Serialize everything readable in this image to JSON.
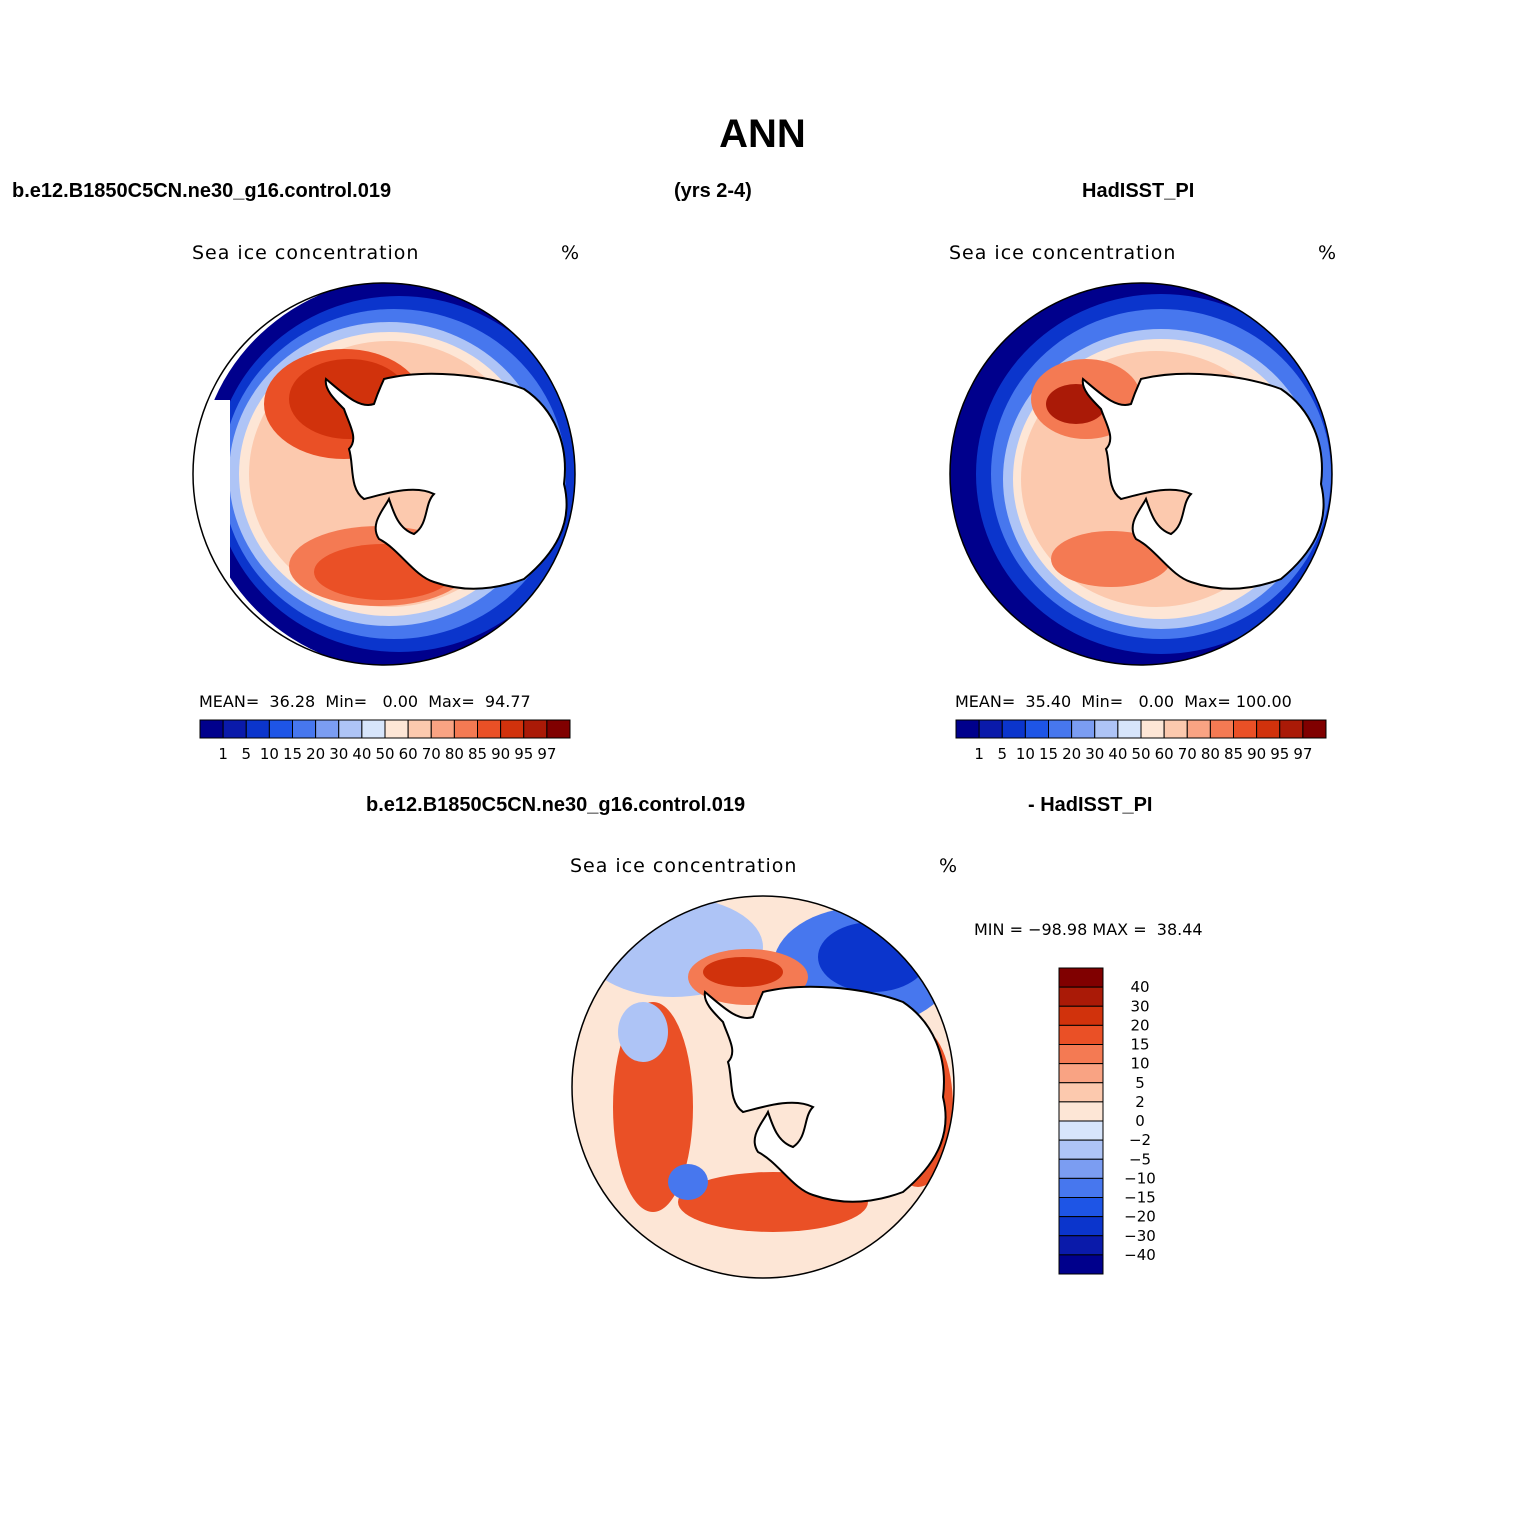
{
  "title": "ANN",
  "top_headers": {
    "left": "b.e12.B1850C5CN.ne30_g16.control.019",
    "center": "(yrs 2-4)",
    "right": "HadISST_PI"
  },
  "diff_headers": {
    "left": "b.e12.B1850C5CN.ne30_g16.control.019",
    "right": "- HadISST_PI"
  },
  "panels": [
    {
      "title": "Sea ice concentration",
      "units": "%",
      "stats": {
        "mean_label": "MEAN=",
        "mean": "36.28",
        "min_label": "Min=",
        "min": "0.00",
        "max_label": "Max=",
        "max": "94.77"
      }
    },
    {
      "title": "Sea ice concentration",
      "units": "%",
      "stats": {
        "mean_label": "MEAN=",
        "mean": "35.40",
        "min_label": "Min=",
        "min": "0.00",
        "max_label": "Max=",
        "max": "100.00"
      }
    },
    {
      "title": "Sea ice concentration",
      "units": "%",
      "stats": {
        "min_label": "MIN =",
        "min": "−98.98",
        "max_label": "MAX =",
        "max": "38.44"
      }
    }
  ],
  "colorbar_abs": {
    "labels": [
      "1",
      "5",
      "10",
      "15",
      "20",
      "30",
      "40",
      "50",
      "60",
      "70",
      "80",
      "85",
      "90",
      "95",
      "97"
    ],
    "colors": [
      "#00008c",
      "#0a1aaa",
      "#0b35cc",
      "#1e55e6",
      "#4777ee",
      "#7b9df2",
      "#aec4f6",
      "#d7e5fb",
      "#fde6d6",
      "#fcc9ae",
      "#f9a383",
      "#f47a53",
      "#ea5026",
      "#d1320c",
      "#aa1a07",
      "#800000"
    ]
  },
  "colorbar_diff": {
    "labels": [
      "40",
      "30",
      "20",
      "15",
      "10",
      "5",
      "2",
      "0",
      "−2",
      "−5",
      "−10",
      "−15",
      "−20",
      "−30",
      "−40"
    ],
    "colors": [
      "#800000",
      "#aa1a07",
      "#d1320c",
      "#ea5026",
      "#f47a53",
      "#f9a383",
      "#fcc9ae",
      "#fde6d6",
      "#d7e5fb",
      "#aec4f6",
      "#7b9df2",
      "#4777ee",
      "#1e55e6",
      "#0b35cc",
      "#0a1aaa",
      "#00008c"
    ]
  }
}
